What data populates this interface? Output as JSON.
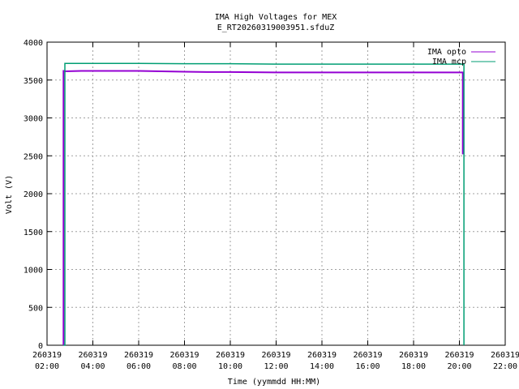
{
  "chart_data": {
    "type": "line",
    "title": "IMA High Voltages for MEX",
    "subtitle": "E_RT20260319003951.sfduZ",
    "xlabel": "Time (yymmdd HH:MM)",
    "ylabel": "Volt (V)",
    "xlim_hours": [
      2,
      22
    ],
    "ylim": [
      0,
      4000
    ],
    "y_ticks": [
      0,
      500,
      1000,
      1500,
      2000,
      2500,
      3000,
      3500,
      4000
    ],
    "x_ticks": [
      {
        "hour": 2,
        "date": "260319",
        "time": "02:00"
      },
      {
        "hour": 4,
        "date": "260319",
        "time": "04:00"
      },
      {
        "hour": 6,
        "date": "260319",
        "time": "06:00"
      },
      {
        "hour": 8,
        "date": "260319",
        "time": "08:00"
      },
      {
        "hour": 10,
        "date": "260319",
        "time": "10:00"
      },
      {
        "hour": 12,
        "date": "260319",
        "time": "12:00"
      },
      {
        "hour": 14,
        "date": "260319",
        "time": "14:00"
      },
      {
        "hour": 16,
        "date": "260319",
        "time": "16:00"
      },
      {
        "hour": 18,
        "date": "260319",
        "time": "18:00"
      },
      {
        "hour": 20,
        "date": "260319",
        "time": "20:00"
      },
      {
        "hour": 22,
        "date": "260319",
        "time": "22:00"
      }
    ],
    "grid": true,
    "legend_position": "top-right",
    "series": [
      {
        "name": "IMA opto",
        "color": "#9400d3",
        "x_hours": [
          2.72,
          2.72,
          2.72,
          2.75,
          2.78,
          3.5,
          6.0,
          8.0,
          9.0,
          10.0,
          12.0,
          14.0,
          16.0,
          18.0,
          20.0,
          20.12,
          20.15,
          20.15
        ],
        "values": [
          0,
          170,
          3620,
          3620,
          3615,
          3620,
          3620,
          3610,
          3605,
          3605,
          3600,
          3600,
          3600,
          3600,
          3600,
          3600,
          3600,
          2520
        ]
      },
      {
        "name": "IMA mcp",
        "color": "#009e73",
        "x_hours": [
          2.72,
          2.78,
          2.78,
          4.0,
          6.0,
          8.0,
          10.0,
          12.0,
          14.0,
          16.0,
          18.0,
          20.0,
          20.15,
          20.2,
          20.2
        ],
        "values": [
          0,
          0,
          3720,
          3720,
          3720,
          3715,
          3715,
          3710,
          3710,
          3710,
          3710,
          3710,
          3710,
          3710,
          0
        ]
      }
    ]
  }
}
